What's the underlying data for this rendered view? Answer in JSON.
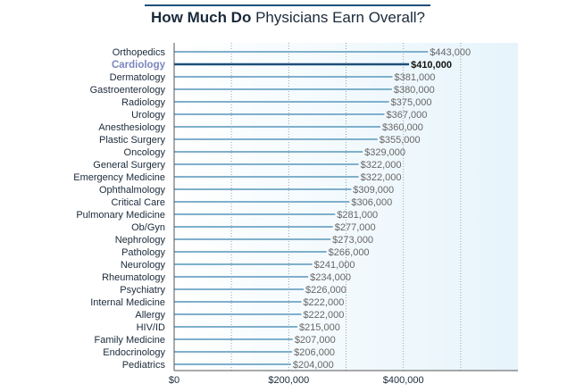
{
  "title": {
    "bold": "How Much Do",
    "rest": "Physicians Earn Overall?"
  },
  "chart_data": {
    "type": "bar",
    "orientation": "horizontal",
    "categories": [
      "Orthopedics",
      "Cardiology",
      "Dermatology",
      "Gastroenterology",
      "Radiology",
      "Urology",
      "Anesthesiology",
      "Plastic Surgery",
      "Oncology",
      "General Surgery",
      "Emergency Medicine",
      "Ophthalmology",
      "Critical Care",
      "Pulmonary Medicine",
      "Ob/Gyn",
      "Nephrology",
      "Pathology",
      "Neurology",
      "Rheumatology",
      "Psychiatry",
      "Internal Medicine",
      "Allergy",
      "HIV/ID",
      "Family Medicine",
      "Endocrinology",
      "Pediatrics"
    ],
    "values": [
      443000,
      410000,
      381000,
      380000,
      375000,
      367000,
      360000,
      355000,
      329000,
      322000,
      322000,
      309000,
      306000,
      281000,
      277000,
      273000,
      266000,
      241000,
      234000,
      226000,
      222000,
      222000,
      215000,
      207000,
      206000,
      204000
    ],
    "value_labels": [
      "$443,000",
      "$410,000",
      "$381,000",
      "$380,000",
      "$375,000",
      "$367,000",
      "$360,000",
      "$355,000",
      "$329,000",
      "$322,000",
      "$322,000",
      "$309,000",
      "$306,000",
      "$281,000",
      "$277,000",
      "$273,000",
      "$266,000",
      "$241,000",
      "$234,000",
      "$226,000",
      "$222,000",
      "$222,000",
      "$215,000",
      "$207,000",
      "$206,000",
      "$204,000"
    ],
    "highlight": "Cardiology",
    "xlim": [
      0,
      600000
    ],
    "x_ticks": [
      0,
      200000,
      400000
    ],
    "x_tick_labels": [
      "$0",
      "$200,000",
      "$400,000"
    ],
    "grid": true,
    "colors": {
      "bar": "#7fb0cc",
      "bar_highlight": "#1d4f7a",
      "label": "#1a2a3a",
      "label_highlight": "#7a86c0",
      "value": "#666666",
      "value_highlight": "#111111",
      "plot_bg_light": "#ffffff",
      "plot_bg_dark": "#e6f4fb",
      "grid": "#9aa4ad"
    }
  }
}
